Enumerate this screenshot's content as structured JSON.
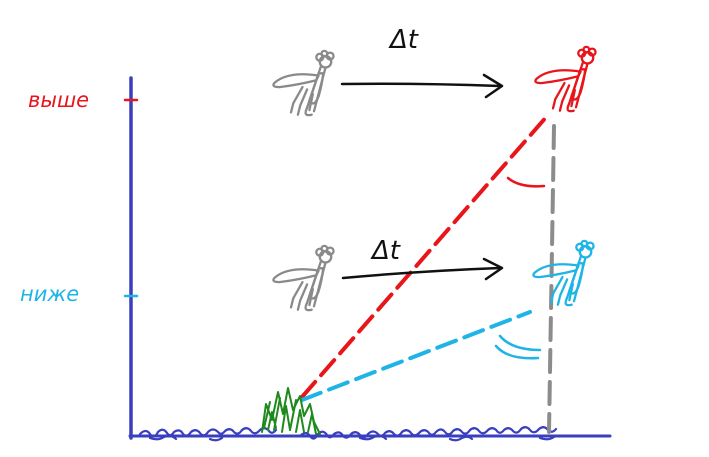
{
  "labels": {
    "higher": "выше",
    "lower": "ниже",
    "delta_t_top": "Δt",
    "delta_t_bottom": "Δt"
  },
  "colors": {
    "higher": "#e8151b",
    "lower": "#1fb4e6",
    "axis": "#3a3fbf",
    "grass": "#1e8a1e",
    "fly_past": "#8a8a8a",
    "guide": "#8c8c8c",
    "arrow": "#111111"
  },
  "icons": {
    "fly": "fly-icon",
    "grass": "grass-tuft-icon"
  }
}
